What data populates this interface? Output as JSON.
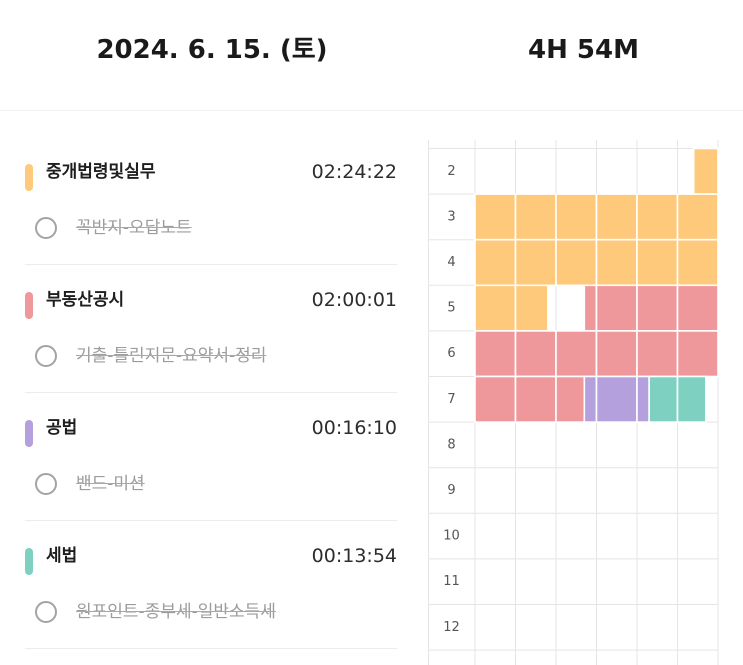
{
  "header": {
    "date": "2024. 6. 15. (토)",
    "total_time": "4H 54M"
  },
  "subjects": [
    {
      "name": "중개법령및실무",
      "time": "02:24:22",
      "color": "#FFC97C",
      "tasks": [
        {
          "text": "꼭반지-오답노트",
          "completed": true
        }
      ]
    },
    {
      "name": "부동산공시",
      "time": "02:00:01",
      "color": "#EE989C",
      "tasks": [
        {
          "text": "기출-틀린지문-요약서-정리",
          "completed": true
        }
      ]
    },
    {
      "name": "공법",
      "time": "00:16:10",
      "color": "#B4A0DC",
      "tasks": [
        {
          "text": "밴드-미션",
          "completed": true
        }
      ]
    },
    {
      "name": "세법",
      "time": "00:13:54",
      "color": "#7ED0C1",
      "tasks": [
        {
          "text": "원포인트-종부세-일반소득세",
          "completed": true
        }
      ]
    }
  ],
  "timetable": {
    "hours": [
      "2",
      "3",
      "4",
      "5",
      "6",
      "7",
      "8",
      "9",
      "10",
      "11",
      "12"
    ],
    "blocks": [
      {
        "subject": "중개법령및실무",
        "start": "2:54",
        "end": "5:18"
      },
      {
        "subject": "부동산공시",
        "start": "5:27",
        "end": "7:27"
      },
      {
        "subject": "공법",
        "start": "7:27",
        "end": "7:43"
      },
      {
        "subject": "세법",
        "start": "7:43",
        "end": "7:57"
      }
    ]
  }
}
